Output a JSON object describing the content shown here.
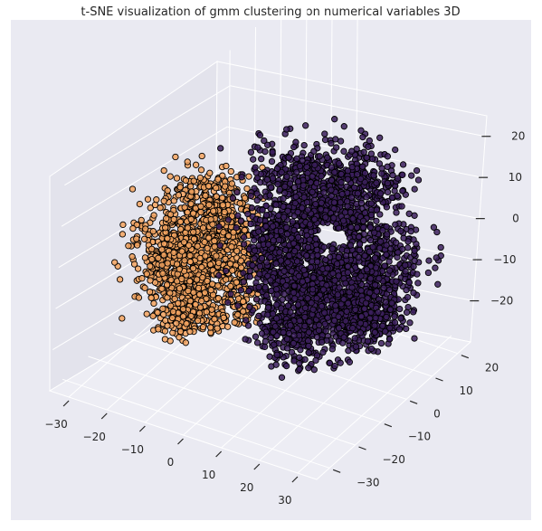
{
  "chart_data": {
    "type": "scatter",
    "projection": "3d",
    "title": "t-SNE visualization of gmm clustering on numerical variables 3D",
    "axes": {
      "x": {
        "ticks": [
          -30,
          -20,
          -10,
          0,
          10,
          20,
          30
        ],
        "tick_labels": [
          "−30",
          "−20",
          "−10",
          "0",
          "10",
          "20",
          "30"
        ],
        "lim": [
          -35,
          35
        ]
      },
      "y": {
        "ticks": [
          -30,
          -20,
          -10,
          0,
          10,
          20
        ],
        "tick_labels": [
          "−30",
          "−20",
          "−10",
          "0",
          "10",
          "20"
        ],
        "lim": [
          -35,
          25
        ]
      },
      "z": {
        "ticks": [
          -20,
          -10,
          0,
          10,
          20
        ],
        "tick_labels": [
          "−20",
          "−10",
          "0",
          "10",
          "20"
        ],
        "lim": [
          -30,
          25
        ]
      }
    },
    "background": "#eaeaf2",
    "grid": true,
    "legend": "none",
    "series": [
      {
        "color": "#f4a460",
        "edgecolor": "#000000",
        "approx_count": 2500,
        "center": [
          -10,
          10,
          0
        ]
      },
      {
        "color": "#3b1f5c",
        "edgecolor": "#000000",
        "approx_count": 5500,
        "center": [
          10,
          -5,
          0
        ]
      }
    ]
  }
}
